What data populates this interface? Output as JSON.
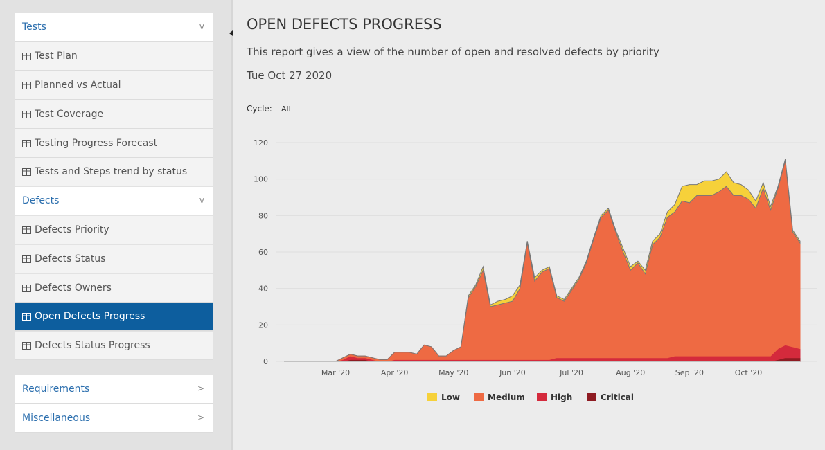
{
  "sidebar": {
    "sections": [
      {
        "title": "Tests",
        "indicator": "v",
        "items": [
          "Test Plan",
          "Planned vs Actual",
          "Test Coverage",
          "Testing Progress Forecast",
          "Tests and Steps trend by status"
        ]
      },
      {
        "title": "Defects",
        "indicator": "v",
        "items": [
          "Defects Priority",
          "Defects Status",
          "Defects Owners",
          "Open Defects Progress",
          "Defects Status Progress"
        ]
      },
      {
        "title": "Requirements",
        "indicator": ">"
      },
      {
        "title": "Miscellaneous",
        "indicator": ">"
      }
    ]
  },
  "report": {
    "title": "OPEN DEFECTS PROGRESS",
    "description": "This report gives a view of the number of open and resolved defects by priority",
    "date": "Tue Oct 27 2020",
    "cycle_label": "Cycle:",
    "cycle_value": "All"
  },
  "chart_data": {
    "type": "stacked-area",
    "categories": [
      null,
      null,
      null,
      null,
      null,
      null,
      null,
      "Mar '20",
      null,
      null,
      null,
      null,
      null,
      null,
      null,
      "Apr '20",
      null,
      null,
      null,
      null,
      null,
      null,
      null,
      "May '20",
      null,
      null,
      null,
      null,
      null,
      null,
      null,
      "Jun '20",
      null,
      null,
      null,
      null,
      null,
      null,
      null,
      "Jul '20",
      null,
      null,
      null,
      null,
      null,
      null,
      null,
      "Aug '20",
      null,
      null,
      null,
      null,
      null,
      null,
      null,
      "Sep '20",
      null,
      null,
      null,
      null,
      null,
      null,
      null,
      "Oct '20",
      null,
      null,
      null,
      null,
      null,
      null,
      null
    ],
    "series": [
      {
        "name": "Critical",
        "color": "#8e1b22",
        "values": [
          0,
          0,
          0,
          0,
          0,
          0,
          0,
          0,
          0,
          1,
          1,
          1,
          0,
          0,
          0,
          0,
          0,
          0,
          0,
          0,
          0,
          0,
          0,
          0,
          0,
          0,
          0,
          0,
          0,
          0,
          0,
          0,
          0,
          0,
          0,
          0,
          0,
          0,
          0,
          0,
          0,
          0,
          0,
          0,
          0,
          0,
          0,
          0,
          0,
          0,
          0,
          0,
          0,
          0,
          0,
          0,
          0,
          0,
          0,
          0,
          0,
          0,
          0,
          0,
          0,
          0,
          0,
          1,
          2,
          2,
          2
        ]
      },
      {
        "name": "High",
        "color": "#d42a3c",
        "values": [
          0,
          0,
          0,
          0,
          0,
          0,
          0,
          0,
          1,
          2,
          1,
          1,
          1,
          0,
          0,
          1,
          1,
          1,
          1,
          1,
          1,
          1,
          1,
          1,
          1,
          1,
          1,
          1,
          1,
          1,
          1,
          1,
          1,
          1,
          1,
          1,
          1,
          2,
          2,
          2,
          2,
          2,
          2,
          2,
          2,
          2,
          2,
          2,
          2,
          2,
          2,
          2,
          2,
          3,
          3,
          3,
          3,
          3,
          3,
          3,
          3,
          3,
          3,
          3,
          3,
          3,
          3,
          6,
          7,
          6,
          5
        ]
      },
      {
        "name": "Medium",
        "color": "#ee6a43",
        "values": [
          0,
          0,
          0,
          0,
          0,
          0,
          0,
          0,
          1,
          1,
          1,
          1,
          1,
          1,
          1,
          4,
          4,
          4,
          3,
          8,
          7,
          2,
          2,
          5,
          7,
          34,
          40,
          49,
          29,
          30,
          31,
          32,
          39,
          64,
          43,
          48,
          50,
          33,
          31,
          37,
          43,
          52,
          65,
          77,
          81,
          69,
          58,
          48,
          52,
          46,
          62,
          66,
          77,
          79,
          85,
          84,
          88,
          88,
          88,
          90,
          93,
          88,
          88,
          86,
          81,
          92,
          80,
          88,
          101,
          63,
          58
        ]
      },
      {
        "name": "Low",
        "color": "#f6d13a",
        "values": [
          0,
          0,
          0,
          0,
          0,
          0,
          0,
          0,
          0,
          0,
          0,
          0,
          0,
          0,
          0,
          0,
          0,
          0,
          0,
          0,
          0,
          0,
          0,
          0,
          0,
          1,
          1,
          2,
          1,
          2,
          2,
          3,
          2,
          1,
          2,
          1,
          1,
          1,
          1,
          1,
          1,
          1,
          1,
          1,
          1,
          1,
          2,
          2,
          1,
          2,
          2,
          2,
          3,
          4,
          8,
          10,
          6,
          8,
          8,
          7,
          8,
          7,
          6,
          5,
          4,
          3,
          2,
          1,
          1,
          1,
          1
        ]
      }
    ],
    "ylim": [
      0,
      120
    ],
    "yticks": [
      0,
      20,
      40,
      60,
      80,
      100,
      120
    ],
    "grid": true,
    "legend": "bottom"
  }
}
